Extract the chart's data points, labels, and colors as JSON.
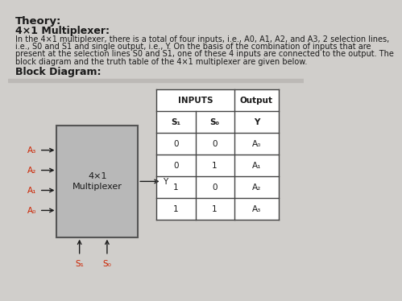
{
  "title": "Theory:",
  "subtitle": "4×1 Multiplexer:",
  "body_line1": "In the 4×1 multiplexer, there is a total of four inputs, i.e., A0, A1, A2, and A3, 2 selection lines,",
  "body_line2": "i.e., S0 and S1 and single output, i.e., Y. On the basis of the combination of inputs that are",
  "body_line3": "present at the selection lines S0 and S1, one of these 4 inputs are connected to the output. The",
  "body_line4": "block diagram and the truth table of the 4×1 multiplexer are given below.",
  "block_diagram_label": "Block Diagram:",
  "mux_label_line1": "4×1",
  "mux_label_line2": "Multiplexer",
  "input_labels": [
    "A₃",
    "A₂",
    "A₁",
    "A₀"
  ],
  "output_label": "Y",
  "sel_labels": [
    "S₁",
    "S₀"
  ],
  "table_header_inputs": "INPUTS",
  "table_header_output": "Output",
  "table_col1": "S₁",
  "table_col2": "S₀",
  "table_col3": "Y",
  "table_data": [
    [
      "0",
      "0",
      "A₀"
    ],
    [
      "0",
      "1",
      "A₁"
    ],
    [
      "1",
      "0",
      "A₂"
    ],
    [
      "1",
      "1",
      "A₃"
    ]
  ],
  "mux_box_color": "#b8b8b8",
  "mux_box_edge": "#555555",
  "text_color": "#1a1a1a",
  "red_color": "#cc2200",
  "table_border": "#444444",
  "page_bg": "#d0cecb",
  "white": "#ffffff",
  "title_fs": 9.5,
  "subtitle_fs": 9.0,
  "body_fs": 7.0,
  "block_fs": 9.0,
  "mux_label_fs": 8.0,
  "input_fs": 7.5,
  "table_header_fs": 7.5,
  "table_data_fs": 7.5
}
